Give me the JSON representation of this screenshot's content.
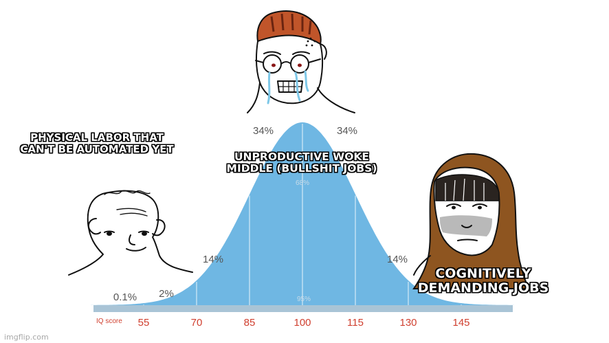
{
  "chart_data": {
    "type": "area",
    "xlabel": "IQ score",
    "x_ticks": [
      55,
      70,
      85,
      100,
      115,
      130,
      145
    ],
    "distribution": {
      "mean": 100,
      "sd": 15
    },
    "region_labels": [
      {
        "text": "0.1%",
        "segment": "below 55"
      },
      {
        "text": "2%",
        "segment": "55-70"
      },
      {
        "text": "14%",
        "segment": "70-85"
      },
      {
        "text": "34%",
        "segment": "85-100"
      },
      {
        "text": "34%",
        "segment": "100-115"
      },
      {
        "text": "14%",
        "segment": "115-130"
      }
    ],
    "band_labels": {
      "inner": "68%",
      "outer": "95%"
    },
    "fill_color": "#6fb7e3",
    "axis_color": "#a9c4d6"
  },
  "captions": {
    "left": "PHYSICAL LABOR THAT\nCAN'T BE AUTOMATED YET",
    "middle": "UNPRODUCTIVE WOKE\nMIDDLE (BULLSHIT JOBS)",
    "right": "COGNITIVELY\nDEMANDING JOBS"
  },
  "watermark": "imgflip.com",
  "characters": [
    "wojak-face",
    "crying-glasses-wojak",
    "hooded-figure"
  ]
}
